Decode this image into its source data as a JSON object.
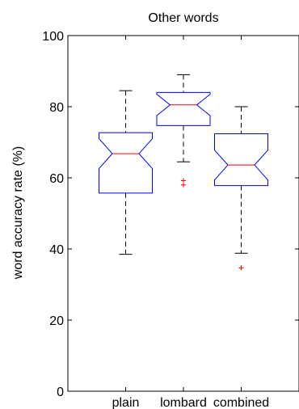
{
  "chart_data": {
    "type": "boxplot",
    "title": "Other words",
    "xlabel": "",
    "ylabel": "word accuracy rate (%)",
    "ylim": [
      0,
      100
    ],
    "yticks": [
      0,
      20,
      40,
      60,
      80,
      100
    ],
    "grid": false,
    "notched": true,
    "colors": {
      "box": "#0000ff",
      "median": "#ff0000",
      "whisker": "#000000",
      "outlier": "#ff0000",
      "axis": "#000000"
    },
    "categories": [
      "plain",
      "lombard",
      "combined"
    ],
    "boxes": [
      {
        "name": "plain",
        "whisker_low": 38.5,
        "q1": 55.7,
        "median": 66.8,
        "q3": 72.7,
        "whisker_high": 84.5,
        "notch_low": 62.6,
        "notch_high": 71.0,
        "outliers": []
      },
      {
        "name": "lombard",
        "whisker_low": 64.5,
        "q1": 74.7,
        "median": 80.5,
        "q3": 84.0,
        "whisker_high": 89.0,
        "notch_low": 77.5,
        "notch_high": 83.5,
        "outliers": [
          59.2,
          58.0
        ]
      },
      {
        "name": "combined",
        "whisker_low": 38.8,
        "q1": 57.8,
        "median": 63.6,
        "q3": 72.4,
        "whisker_high": 80.0,
        "notch_low": 59.4,
        "notch_high": 67.8,
        "outliers": [
          34.7
        ]
      }
    ]
  }
}
